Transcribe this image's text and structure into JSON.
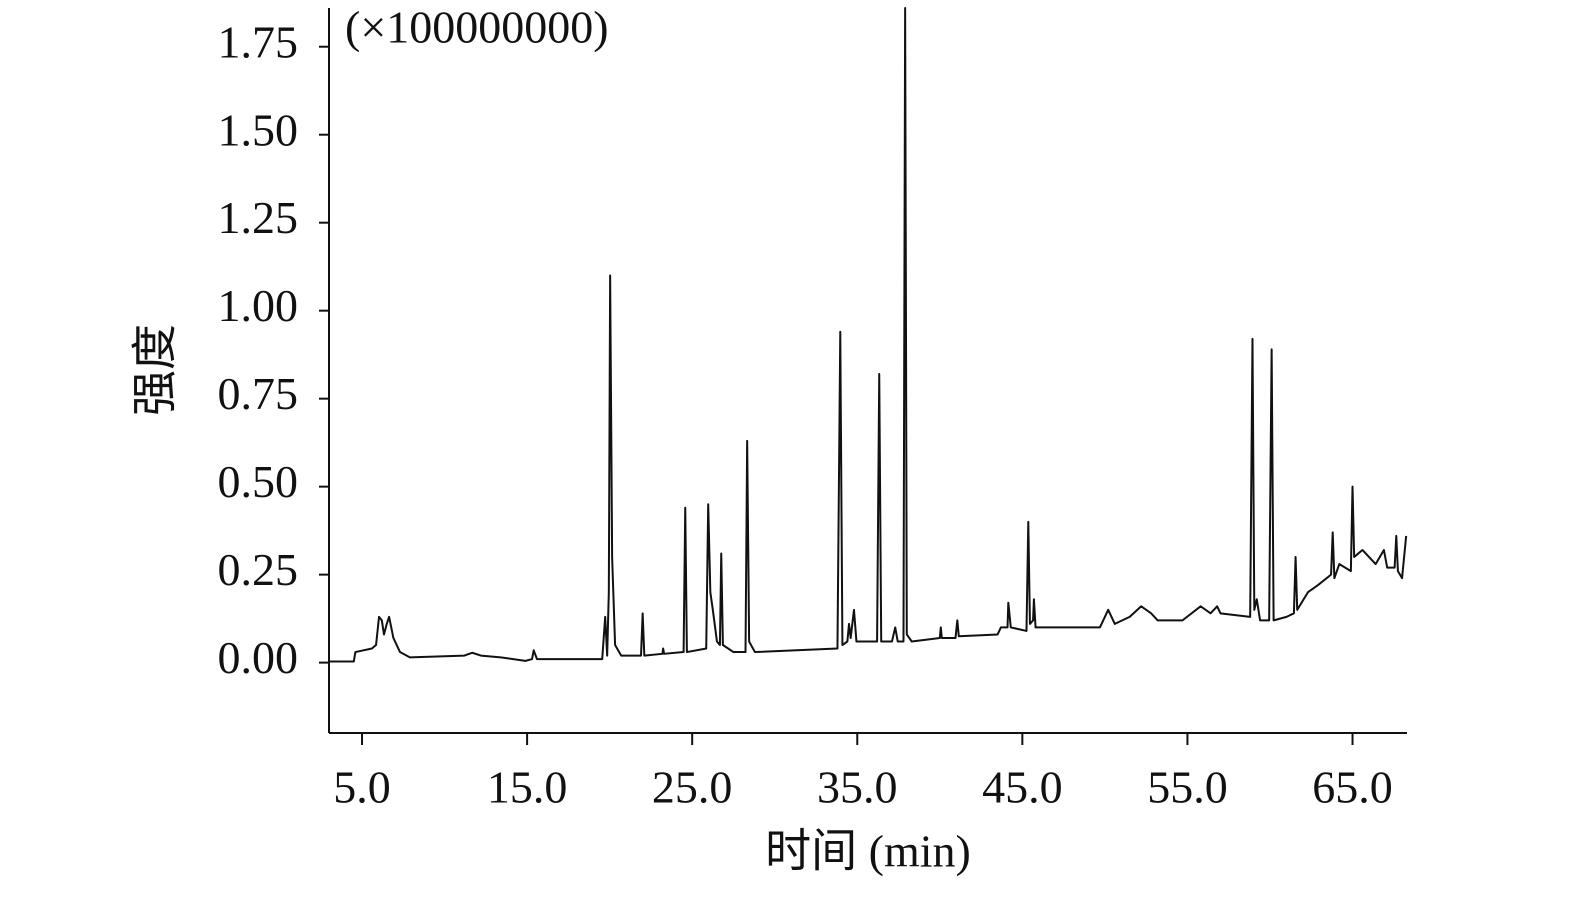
{
  "chart_data": {
    "type": "line",
    "annotation": "(×100000000)",
    "x_label": "时间 (min)",
    "y_label": "强度",
    "color": "#111111",
    "xlim": [
      3.0,
      68.3
    ],
    "ylim": [
      -0.2,
      1.86
    ],
    "xticks": [
      {
        "value": 5,
        "label": "5.0"
      },
      {
        "value": 15,
        "label": "15.0"
      },
      {
        "value": 25,
        "label": "25.0"
      },
      {
        "value": 35,
        "label": "35.0"
      },
      {
        "value": 45,
        "label": "45.0"
      },
      {
        "value": 55,
        "label": "55.0"
      },
      {
        "value": 65,
        "label": "65.0"
      }
    ],
    "yticks": [
      {
        "value": 0,
        "label": "0.00"
      },
      {
        "value": 0.25,
        "label": "0.25"
      },
      {
        "value": 0.5,
        "label": "0.50"
      },
      {
        "value": 0.75,
        "label": "0.75"
      },
      {
        "value": 1,
        "label": "1.00"
      },
      {
        "value": 1.25,
        "label": "1.25"
      },
      {
        "value": 1.5,
        "label": "1.50"
      },
      {
        "value": 1.75,
        "label": "1.75"
      }
    ],
    "x": [
      3.0,
      4.5,
      4.6,
      5.6,
      5.85,
      6.03,
      6.2,
      6.33,
      6.5,
      6.64,
      6.9,
      7.3,
      7.9,
      11.2,
      11.67,
      12.2,
      13.4,
      14.9,
      15.3,
      15.4,
      15.6,
      19.55,
      19.73,
      19.85,
      19.95,
      20.03,
      20.15,
      20.33,
      20.7,
      21.9,
      22.0,
      22.1,
      23.2,
      23.24,
      23.3,
      24.48,
      24.58,
      24.68,
      25.85,
      25.97,
      26.1,
      26.25,
      26.5,
      26.68,
      26.76,
      26.86,
      27.5,
      28.23,
      28.33,
      28.45,
      28.8,
      33.8,
      33.97,
      34.1,
      34.4,
      34.5,
      34.6,
      34.8,
      34.95,
      36.2,
      36.33,
      36.45,
      37.1,
      37.3,
      37.45,
      37.8,
      37.9,
      38.0,
      38.3,
      40.0,
      40.06,
      40.12,
      40.95,
      41.06,
      41.15,
      43.5,
      43.7,
      44.1,
      44.15,
      44.3,
      45.25,
      45.36,
      45.46,
      45.65,
      45.7,
      45.8,
      47.5,
      49.7,
      50.2,
      50.6,
      51.5,
      52.2,
      52.8,
      53.2,
      54.7,
      55.8,
      56.4,
      56.8,
      57.0,
      58.8,
      58.94,
      59.05,
      59.2,
      59.4,
      59.95,
      60.1,
      60.22,
      61.0,
      61.45,
      61.55,
      61.65,
      62.3,
      62.9,
      63.7,
      63.8,
      63.9,
      64.2,
      64.9,
      65.0,
      65.1,
      65.6,
      66.4,
      66.9,
      67.1,
      67.55,
      67.65,
      67.75,
      68.0,
      68.25
    ],
    "values": [
      0.003,
      0.003,
      0.03,
      0.04,
      0.05,
      0.13,
      0.12,
      0.08,
      0.11,
      0.13,
      0.07,
      0.03,
      0.015,
      0.02,
      0.028,
      0.02,
      0.015,
      0.005,
      0.01,
      0.035,
      0.01,
      0.01,
      0.13,
      0.02,
      0.2,
      1.1,
      0.3,
      0.05,
      0.02,
      0.02,
      0.14,
      0.02,
      0.025,
      0.04,
      0.025,
      0.03,
      0.44,
      0.03,
      0.04,
      0.45,
      0.2,
      0.15,
      0.06,
      0.05,
      0.31,
      0.05,
      0.03,
      0.03,
      0.63,
      0.06,
      0.03,
      0.04,
      0.94,
      0.05,
      0.06,
      0.11,
      0.07,
      0.15,
      0.06,
      0.06,
      0.82,
      0.06,
      0.06,
      0.1,
      0.06,
      0.06,
      1.86,
      0.08,
      0.06,
      0.07,
      0.1,
      0.07,
      0.07,
      0.12,
      0.075,
      0.08,
      0.1,
      0.1,
      0.17,
      0.1,
      0.09,
      0.4,
      0.11,
      0.12,
      0.18,
      0.1,
      0.1,
      0.1,
      0.15,
      0.11,
      0.13,
      0.16,
      0.14,
      0.12,
      0.12,
      0.16,
      0.14,
      0.16,
      0.14,
      0.13,
      0.92,
      0.15,
      0.18,
      0.12,
      0.12,
      0.89,
      0.12,
      0.13,
      0.14,
      0.3,
      0.15,
      0.2,
      0.22,
      0.25,
      0.37,
      0.24,
      0.28,
      0.26,
      0.5,
      0.3,
      0.32,
      0.28,
      0.32,
      0.27,
      0.27,
      0.36,
      0.26,
      0.24,
      0.36
    ]
  }
}
